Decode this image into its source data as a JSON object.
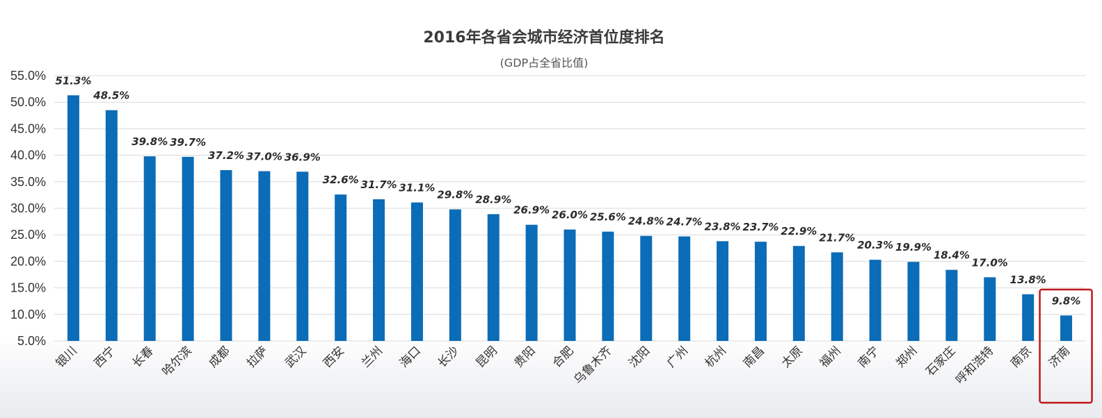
{
  "chart_data": {
    "type": "bar",
    "title": "2016年各省会城市经济首位度排名",
    "subtitle": "(GDP占全省比值)",
    "categories": [
      "银川",
      "西宁",
      "长春",
      "哈尔滨",
      "成都",
      "拉萨",
      "武汉",
      "西安",
      "兰州",
      "海口",
      "长沙",
      "昆明",
      "贵阳",
      "合肥",
      "乌鲁木齐",
      "沈阳",
      "广州",
      "杭州",
      "南昌",
      "太原",
      "福州",
      "南宁",
      "郑州",
      "石家庄",
      "呼和浩特",
      "南京",
      "济南"
    ],
    "values": [
      51.3,
      48.5,
      39.8,
      39.7,
      37.2,
      37.0,
      36.9,
      32.6,
      31.7,
      31.1,
      29.8,
      28.9,
      26.9,
      26.0,
      25.6,
      24.8,
      24.7,
      23.8,
      23.7,
      22.9,
      21.7,
      20.3,
      19.9,
      18.4,
      17.0,
      13.8,
      9.8
    ],
    "data_labels": [
      "51.3%",
      "48.5%",
      "39.8%",
      "39.7%",
      "37.2%",
      "37.0%",
      "36.9%",
      "32.6%",
      "31.7%",
      "31.1%",
      "29.8%",
      "28.9%",
      "26.9%",
      "26.0%",
      "25.6%",
      "24.8%",
      "24.7%",
      "23.8%",
      "23.7%",
      "22.9%",
      "21.7%",
      "20.3%",
      "19.9%",
      "18.4%",
      "17.0%",
      "13.8%",
      "9.8%"
    ],
    "yticks": [
      "5.0%",
      "10.0%",
      "15.0%",
      "20.0%",
      "25.0%",
      "30.0%",
      "35.0%",
      "40.0%",
      "45.0%",
      "50.0%",
      "55.0%"
    ],
    "ylim": [
      5,
      55
    ],
    "grid": true,
    "highlighted_category": "济南",
    "colors": {
      "bar": "#0b6cb8",
      "highlight_box": "#c0151b"
    }
  }
}
